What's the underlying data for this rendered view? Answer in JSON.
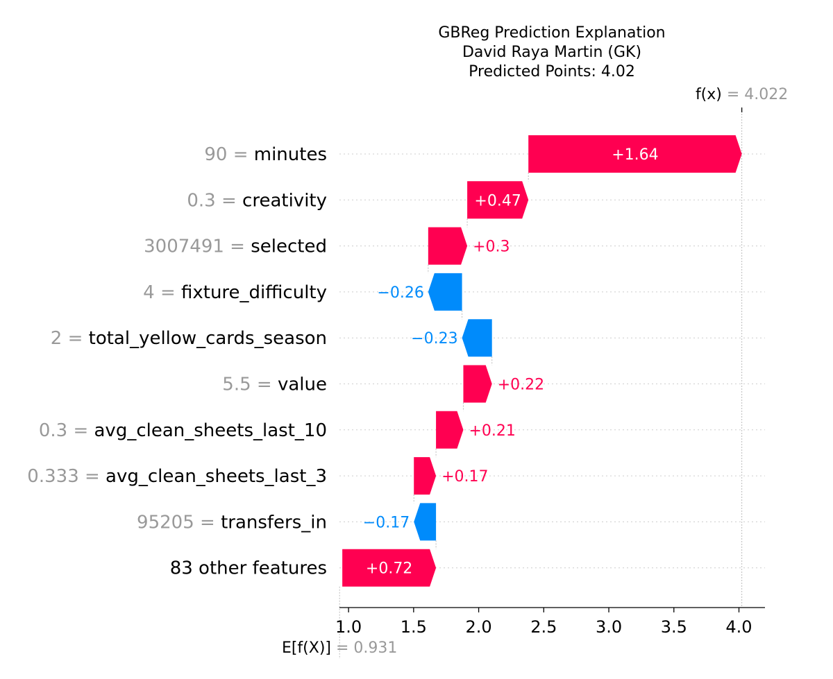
{
  "chart_data": {
    "type": "waterfall",
    "title_lines": [
      "GBReg Prediction Explanation",
      "David Raya Martin (GK)",
      "Predicted Points: 4.02"
    ],
    "base_value": 0.931,
    "base_value_label": "0.931",
    "prediction": 4.022,
    "prediction_label": "4.022",
    "fx_prefix": "f(x) =",
    "ex_prefix": "E[f(X)] =",
    "x_ticks": [
      1.0,
      1.5,
      2.0,
      2.5,
      3.0,
      3.5,
      4.0
    ],
    "x_tick_labels": [
      "1.0",
      "1.5",
      "2.0",
      "2.5",
      "3.0",
      "3.5",
      "4.0"
    ],
    "xlim": [
      0.93,
      4.2
    ],
    "positive_color": "#ff0051",
    "negative_color": "#008bfb",
    "features": [
      {
        "value_text": "90",
        "name": "minutes",
        "contribution": 1.64,
        "label": "+1.64"
      },
      {
        "value_text": "0.3",
        "name": "creativity",
        "contribution": 0.47,
        "label": "+0.47"
      },
      {
        "value_text": "3007491",
        "name": "selected",
        "contribution": 0.3,
        "label": "+0.3"
      },
      {
        "value_text": "4",
        "name": "fixture_difficulty",
        "contribution": -0.26,
        "label": "−0.26"
      },
      {
        "value_text": "2",
        "name": "total_yellow_cards_season",
        "contribution": -0.23,
        "label": "−0.23"
      },
      {
        "value_text": "5.5",
        "name": "value",
        "contribution": 0.22,
        "label": "+0.22"
      },
      {
        "value_text": "0.3",
        "name": "avg_clean_sheets_last_10",
        "contribution": 0.21,
        "label": "+0.21"
      },
      {
        "value_text": "0.333",
        "name": "avg_clean_sheets_last_3",
        "contribution": 0.17,
        "label": "+0.17"
      },
      {
        "value_text": "95205",
        "name": "transfers_in",
        "contribution": -0.17,
        "label": "−0.17"
      },
      {
        "value_text": "",
        "name": "83 other features",
        "contribution": 0.72,
        "label": "+0.72"
      }
    ]
  }
}
